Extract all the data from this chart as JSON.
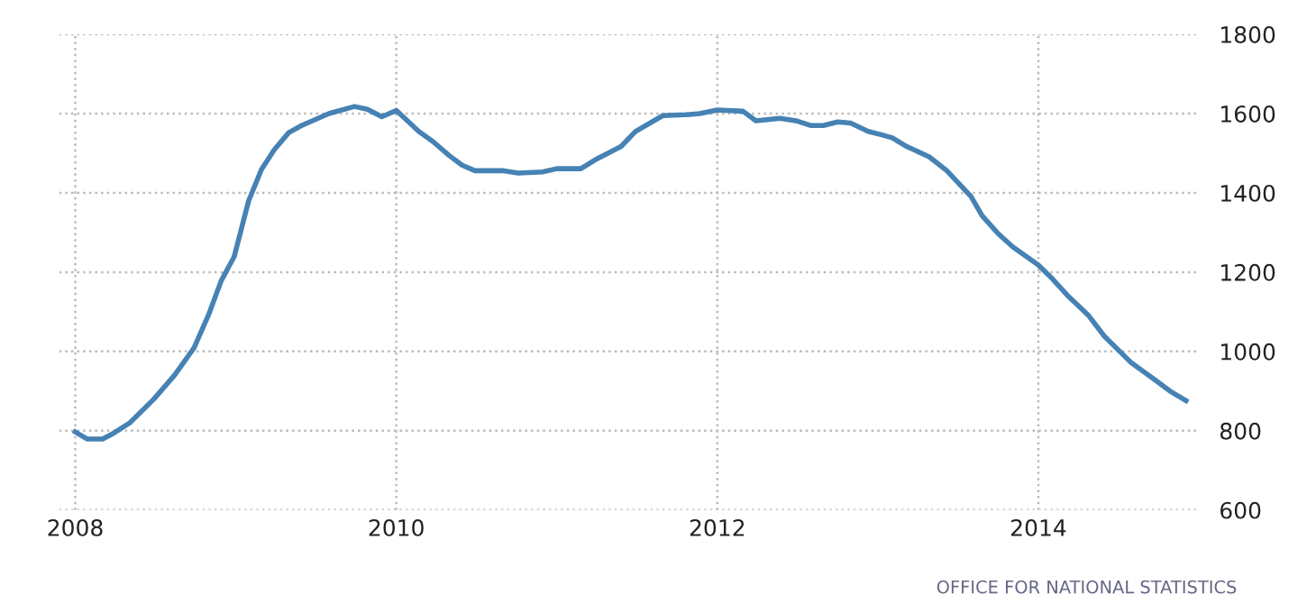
{
  "chart_data": {
    "type": "line",
    "x": [
      2008.0,
      2008.075,
      2008.17,
      2008.24,
      2008.34,
      2008.49,
      2008.62,
      2008.74,
      2008.83,
      2008.91,
      2008.99,
      2009.08,
      2009.16,
      2009.24,
      2009.33,
      2009.41,
      2009.58,
      2009.74,
      2009.82,
      2009.91,
      2010.0,
      2010.14,
      2010.23,
      2010.33,
      2010.41,
      2010.49,
      2010.66,
      2010.76,
      2010.91,
      2011.0,
      2011.15,
      2011.25,
      2011.4,
      2011.49,
      2011.66,
      2011.8,
      2011.89,
      2012.0,
      2012.16,
      2012.24,
      2012.39,
      2012.49,
      2012.58,
      2012.66,
      2012.75,
      2012.83,
      2012.94,
      2013.02,
      2013.09,
      2013.18,
      2013.32,
      2013.43,
      2013.58,
      2013.65,
      2013.75,
      2013.84,
      2014.0,
      2014.09,
      2014.18,
      2014.31,
      2014.41,
      2014.58,
      2014.71,
      2014.82,
      2014.92
    ],
    "series": [
      {
        "color": "#4682b4",
        "values": [
          797,
          779,
          779,
          794,
          820,
          880,
          941,
          1009,
          1092,
          1179,
          1239,
          1380,
          1459,
          1509,
          1552,
          1570,
          1600,
          1618,
          1611,
          1592,
          1608,
          1555,
          1529,
          1494,
          1470,
          1456,
          1456,
          1450,
          1453,
          1461,
          1461,
          1486,
          1517,
          1555,
          1595,
          1597,
          1600,
          1609,
          1606,
          1582,
          1588,
          1582,
          1570,
          1570,
          1579,
          1576,
          1555,
          1547,
          1539,
          1517,
          1491,
          1456,
          1391,
          1342,
          1297,
          1264,
          1218,
          1182,
          1142,
          1092,
          1039,
          971,
          933,
          900,
          876
        ]
      }
    ],
    "xlim": [
      2007.9,
      2015.0
    ],
    "xticks": [
      2008,
      2010,
      2012,
      2014
    ],
    "ylim": [
      600,
      1800
    ],
    "yticks": [
      600,
      800,
      1000,
      1200,
      1400,
      1600,
      1800
    ],
    "grid": true,
    "marker": "none",
    "line_style": "solid",
    "annotations": [
      "OFFICE FOR NATIONAL STATISTICS"
    ]
  }
}
